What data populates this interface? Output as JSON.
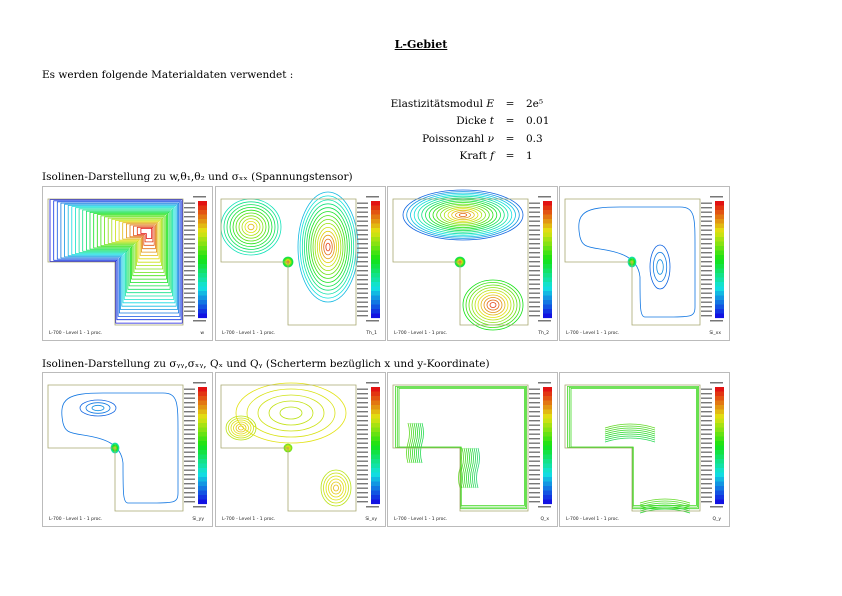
{
  "title": "L-Gebiet",
  "intro": "Es werden folgende Materialdaten verwendet :",
  "materials": [
    {
      "label": "Elastizitätsmodul",
      "symbol": "E",
      "eq": "=",
      "value": "2e⁵"
    },
    {
      "label": "Dicke",
      "symbol": "t",
      "eq": "=",
      "value": "0.01"
    },
    {
      "label": "Poissonzahl",
      "symbol": "ν",
      "eq": "=",
      "value": "0.3"
    },
    {
      "label": "Kraft",
      "symbol": "f",
      "eq": "=",
      "value": "1"
    }
  ],
  "caption1": "Isolinen-Darstellung zu w,θ₁,θ₂ und σₓₓ (Spannungstensor)",
  "caption2": "Isolinen-Darstellung zu σᵧᵧ,σₓᵧ, Qₓ und Qᵧ (Scherterm bezüglich x und y-Koordinate)",
  "plots": [
    {
      "variable": "w",
      "footer": "L-700 - Level 1 - 1 proc."
    },
    {
      "variable": "Th_1",
      "footer": "L-700 - Level 1 - 1 proc."
    },
    {
      "variable": "Th_2",
      "footer": "L-700 - Level 1 - 1 proc."
    },
    {
      "variable": "Si_xx",
      "footer": "L-700 - Level 1 - 1 proc."
    },
    {
      "variable": "Si_yy",
      "footer": "L-700 - Level 1 - 1 proc."
    },
    {
      "variable": "Si_xy",
      "footer": "L-700 - Level 1 - 1 proc."
    },
    {
      "variable": "Q_x",
      "footer": "L-700 - Level 1 - 1 proc."
    },
    {
      "variable": "Q_y",
      "footer": "L-700 - Level 1 - 1 proc."
    }
  ],
  "colors": {
    "domain_outline": "#a8a870",
    "panel_border": "#bbbbbb"
  }
}
